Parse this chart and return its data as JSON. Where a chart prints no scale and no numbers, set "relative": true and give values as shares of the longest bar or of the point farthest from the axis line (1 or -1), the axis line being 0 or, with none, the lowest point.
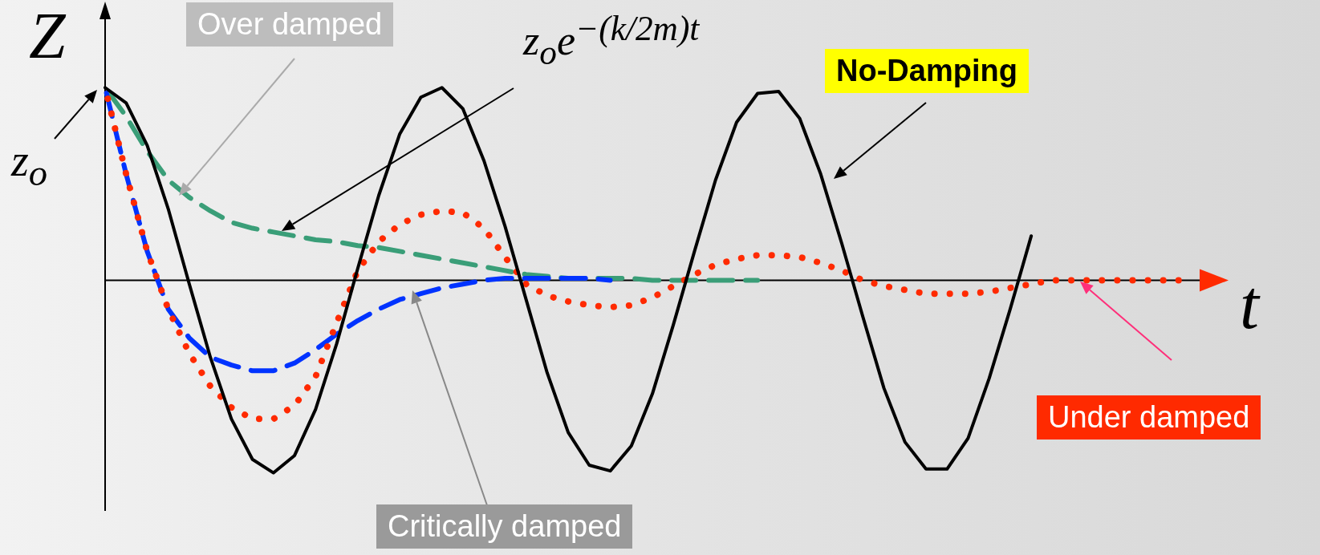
{
  "chart_data": {
    "type": "line",
    "relative": true,
    "xlabel": "t",
    "ylabel": "Z",
    "categories": [
      null,
      null,
      null,
      null,
      null,
      null,
      null,
      null,
      null,
      null,
      null,
      null,
      null,
      null,
      null,
      null,
      null,
      null,
      null,
      null,
      null,
      null,
      null,
      null,
      null,
      null,
      null,
      null,
      null,
      null,
      null,
      null,
      null,
      null,
      null,
      null,
      null,
      null,
      null,
      null,
      null,
      null,
      null,
      null,
      null,
      null,
      null,
      null,
      null,
      null,
      null,
      null,
      null
    ],
    "series": [
      {
        "name": "No-Damping",
        "color": "#000000",
        "line_style": "solid",
        "values": [
          1.0,
          0.92,
          0.7,
          0.37,
          -0.02,
          -0.4,
          -0.72,
          -0.93,
          -1.0,
          -0.91,
          -0.67,
          -0.33,
          0.06,
          0.44,
          0.76,
          0.95,
          1.0,
          0.89,
          0.62,
          0.28,
          -0.1,
          -0.48,
          -0.79,
          -0.96,
          -0.99,
          -0.86,
          -0.59,
          -0.23,
          0.15,
          0.52,
          0.82,
          0.97,
          0.98,
          0.84,
          0.55,
          0.19,
          -0.19,
          -0.56,
          -0.84,
          -0.98,
          -0.98,
          -0.82,
          -0.51,
          -0.15,
          0.23,
          null,
          null,
          null,
          null,
          null,
          null,
          null,
          null
        ]
      },
      {
        "name": "Under damped",
        "color": "#ff2a00",
        "line_style": "dotted",
        "values": [
          1.0,
          0.55,
          0.15,
          -0.15,
          -0.38,
          -0.55,
          -0.66,
          -0.72,
          -0.72,
          -0.65,
          -0.5,
          -0.22,
          0.05,
          0.2,
          0.29,
          0.34,
          0.36,
          0.35,
          0.27,
          0.12,
          -0.02,
          -0.08,
          -0.11,
          -0.13,
          -0.14,
          -0.13,
          -0.09,
          -0.03,
          0.03,
          0.08,
          0.11,
          0.13,
          0.13,
          0.12,
          0.09,
          0.05,
          0,
          -0.03,
          -0.05,
          -0.07,
          -0.07,
          -0.07,
          -0.06,
          -0.04,
          -0.02,
          0,
          0,
          0,
          0,
          0,
          0,
          0,
          null
        ]
      },
      {
        "name": "Critically damped",
        "color": "#0033ff",
        "line_style": "dashed",
        "values": [
          1.0,
          0.55,
          0.15,
          -0.15,
          -0.3,
          -0.4,
          -0.44,
          -0.47,
          -0.47,
          -0.43,
          -0.36,
          -0.28,
          -0.21,
          -0.15,
          -0.1,
          -0.07,
          -0.04,
          -0.02,
          0,
          0.01,
          0.01,
          0.01,
          0.01,
          0.01,
          0,
          null,
          null,
          null,
          null,
          null,
          null,
          null,
          null,
          null,
          null,
          null,
          null,
          null,
          null,
          null,
          null,
          null,
          null,
          null,
          null,
          null,
          null,
          null,
          null,
          null,
          null,
          null,
          null
        ]
      },
      {
        "name": "Over damped",
        "color": "#3a9e78",
        "line_style": "dashed",
        "values": [
          1.0,
          0.85,
          0.67,
          0.52,
          0.43,
          0.36,
          0.3,
          0.27,
          0.25,
          0.23,
          0.21,
          0.2,
          0.18,
          0.17,
          0.15,
          0.13,
          0.11,
          0.09,
          0.07,
          0.05,
          0.03,
          0.02,
          0.01,
          0.01,
          0.01,
          0.01,
          0,
          0,
          0,
          0,
          0,
          0,
          null,
          null,
          null,
          null,
          null,
          null,
          null,
          null,
          null,
          null,
          null,
          null,
          null,
          null,
          null,
          null,
          null,
          null,
          null,
          null,
          null
        ]
      }
    ],
    "annotations": [
      "z$_{o}$",
      "z$_{o}$e$^{−(k/2m)t}$"
    ],
    "marker": "none",
    "legend": false,
    "grid": false,
    "tick_labels": false
  }
}
